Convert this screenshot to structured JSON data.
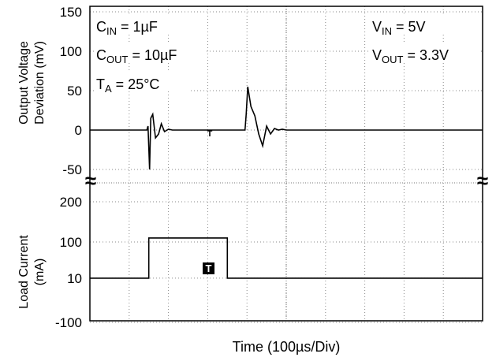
{
  "chart_data": {
    "type": "line",
    "xlabel": "Time (100µs/Div)",
    "time_div_us": 100,
    "x_divisions": 10,
    "annotations_left": [
      {
        "main": "C",
        "sub": "IN",
        "rest": " = 1µF"
      },
      {
        "main": "C",
        "sub": "OUT",
        "rest": " = 10µF"
      },
      {
        "main": "T",
        "sub": "A",
        "rest": " = 25°C"
      }
    ],
    "annotations_right": [
      {
        "main": "V",
        "sub": "IN",
        "rest": " = 5V"
      },
      {
        "main": "V",
        "sub": "OUT",
        "rest": " = 3.3V"
      }
    ],
    "break_symbol": "≈",
    "trigger_label": "T",
    "panels": [
      {
        "name": "voltage",
        "ylabel_lines": [
          "Output Voltage",
          "Deviation (mV)"
        ],
        "ylim": [
          -55,
          155
        ],
        "yticks": [
          -50,
          0,
          50,
          100,
          150
        ],
        "ytick_labels": [
          "-50",
          "0",
          "50",
          "100",
          "150"
        ],
        "series": [
          {
            "x": [
              0,
              1.45,
              1.48,
              1.52,
              1.55,
              1.6,
              1.67,
              1.75,
              1.82,
              1.9,
              2.0,
              2.1,
              3.0,
              3.95,
              3.98,
              4.02,
              4.1,
              4.2,
              4.3,
              4.4,
              4.5,
              4.6,
              4.7,
              4.8,
              4.9,
              5.0,
              10
            ],
            "y": [
              0,
              0,
              5,
              -50,
              15,
              20,
              -10,
              -5,
              8,
              -2,
              1,
              0,
              0,
              0,
              20,
              55,
              30,
              18,
              -5,
              -20,
              5,
              -5,
              2,
              0,
              1,
              0,
              0
            ]
          }
        ]
      },
      {
        "name": "current",
        "ylabel_lines": [
          "Load Current",
          "(mA)"
        ],
        "ylim": [
          -100,
          200
        ],
        "yticks": [
          -100,
          10,
          100,
          200
        ],
        "ytick_labels": [
          "-100",
          "10",
          "100",
          "200"
        ],
        "series": [
          {
            "x": [
              0,
              1.5,
              1.5,
              3.5,
              3.5,
              10
            ],
            "y": [
              10,
              10,
              110,
              110,
              10,
              10
            ]
          }
        ]
      }
    ]
  }
}
